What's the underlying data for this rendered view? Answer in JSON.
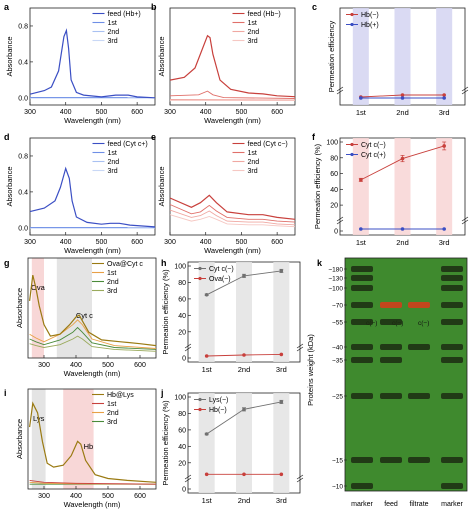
{
  "colors": {
    "blue": "#3b4fc4",
    "blue_light": "#6f8fe6",
    "blue_lighter": "#a9c1f2",
    "red": "#c8403c",
    "red_mid": "#e0706a",
    "red_light": "#f0a8a2",
    "red_bar": "#f8d7d7",
    "blue_bar": "#d6d6f2",
    "grey_bar": "#e4e4e4",
    "olive": "#9a7a12",
    "orange": "#e8a046",
    "green": "#4a8a3a",
    "grey_line": "#707070"
  },
  "chart_data": [
    {
      "id": "a",
      "panel_letter": "a",
      "type": "line",
      "xlabel": "Wavelength (nm)",
      "ylabel": "Absorbance",
      "xlim": [
        300,
        650
      ],
      "ylim": [
        -0.08,
        1.0
      ],
      "xticks": [
        "300",
        "400",
        "500",
        "600"
      ],
      "yticks": [
        "0.0",
        "0.4",
        "0.8"
      ],
      "series": [
        {
          "name": "feed (Hb+)",
          "x": [
            300,
            340,
            360,
            380,
            395,
            402,
            408,
            415,
            430,
            450,
            500,
            540,
            575,
            600,
            650
          ],
          "y": [
            0.04,
            0.08,
            0.12,
            0.3,
            0.68,
            0.75,
            0.55,
            0.2,
            0.06,
            0.03,
            0.01,
            0.03,
            0.03,
            0.01,
            0.0
          ]
        },
        {
          "name": "1st",
          "x": [
            300,
            650
          ],
          "y": [
            0.005,
            0.002
          ]
        },
        {
          "name": "2nd",
          "x": [
            300,
            650
          ],
          "y": [
            0.0,
            0.0
          ]
        },
        {
          "name": "3rd",
          "x": [
            300,
            650
          ],
          "y": [
            -0.003,
            -0.003
          ]
        }
      ]
    },
    {
      "id": "b",
      "panel_letter": "b",
      "type": "line",
      "xlabel": "Wavelength (nm)",
      "ylabel": "Absorbance",
      "xlim": [
        300,
        650
      ],
      "ylim": [
        -0.05,
        1.0
      ],
      "xticks": [
        "300",
        "400",
        "500",
        "600"
      ],
      "yticks": [],
      "series": [
        {
          "name": "feed (Hb−)",
          "x": [
            300,
            340,
            370,
            390,
            405,
            412,
            420,
            440,
            470,
            520,
            560,
            600,
            650
          ],
          "y": [
            0.22,
            0.25,
            0.35,
            0.55,
            0.7,
            0.68,
            0.5,
            0.22,
            0.12,
            0.08,
            0.07,
            0.05,
            0.04
          ]
        },
        {
          "name": "1st",
          "x": [
            300,
            380,
            405,
            420,
            450,
            650
          ],
          "y": [
            0.05,
            0.06,
            0.1,
            0.06,
            0.03,
            0.02
          ]
        },
        {
          "name": "2nd",
          "x": [
            300,
            650
          ],
          "y": [
            0.01,
            0.005
          ]
        },
        {
          "name": "3rd",
          "x": [
            300,
            650
          ],
          "y": [
            0.0,
            0.0
          ]
        }
      ]
    },
    {
      "id": "c",
      "panel_letter": "c",
      "type": "line",
      "xlabel": "",
      "ylabel": "Permeation efficiency",
      "categories": [
        "1st",
        "2nd",
        "3rd"
      ],
      "ylim": [
        0,
        100
      ],
      "break": true,
      "series": [
        {
          "name": "Hb(−)",
          "values": [
            2,
            3,
            3
          ]
        },
        {
          "name": "Hb(+)",
          "values": [
            1.5,
            1.5,
            1.5
          ]
        }
      ]
    },
    {
      "id": "d",
      "panel_letter": "d",
      "type": "line",
      "xlabel": "Wavelength (nm)",
      "ylabel": "Absorbance",
      "xlim": [
        300,
        650
      ],
      "ylim": [
        -0.08,
        1.0
      ],
      "xticks": [
        "300",
        "400",
        "500",
        "600"
      ],
      "yticks": [
        "0.0",
        "0.4",
        "0.8"
      ],
      "series": [
        {
          "name": "feed (Cyt c+)",
          "x": [
            300,
            340,
            370,
            385,
            400,
            410,
            418,
            430,
            460,
            500,
            525,
            550,
            580,
            650
          ],
          "y": [
            0.18,
            0.22,
            0.3,
            0.45,
            0.66,
            0.55,
            0.3,
            0.12,
            0.06,
            0.04,
            0.05,
            0.05,
            0.03,
            0.01
          ]
        },
        {
          "name": "1st",
          "x": [
            300,
            650
          ],
          "y": [
            0.005,
            0.002
          ]
        },
        {
          "name": "2nd",
          "x": [
            300,
            650
          ],
          "y": [
            0.0,
            0.0
          ]
        },
        {
          "name": "3rd",
          "x": [
            300,
            650
          ],
          "y": [
            -0.003,
            -0.003
          ]
        }
      ]
    },
    {
      "id": "e",
      "panel_letter": "e",
      "type": "line",
      "xlabel": "Wavelength (nm)",
      "ylabel": "Absorbance",
      "xlim": [
        300,
        650
      ],
      "ylim": [
        -0.05,
        1.0
      ],
      "xticks": [
        "300",
        "400",
        "500",
        "600"
      ],
      "yticks": [],
      "series": [
        {
          "name": "feed (Cyt c−)",
          "x": [
            300,
            360,
            385,
            410,
            430,
            460,
            520,
            560,
            600,
            650
          ],
          "y": [
            0.35,
            0.25,
            0.3,
            0.38,
            0.3,
            0.2,
            0.17,
            0.17,
            0.14,
            0.12
          ]
        },
        {
          "name": "1st",
          "x": [
            300,
            360,
            385,
            410,
            430,
            460,
            520,
            560,
            600,
            650
          ],
          "y": [
            0.28,
            0.18,
            0.2,
            0.27,
            0.21,
            0.14,
            0.12,
            0.12,
            0.1,
            0.09
          ]
        },
        {
          "name": "2nd",
          "x": [
            300,
            360,
            385,
            410,
            430,
            460,
            520,
            560,
            600,
            650
          ],
          "y": [
            0.22,
            0.14,
            0.16,
            0.21,
            0.16,
            0.1,
            0.09,
            0.09,
            0.07,
            0.06
          ]
        },
        {
          "name": "3rd",
          "x": [
            300,
            360,
            385,
            410,
            430,
            460,
            520,
            560,
            600,
            650
          ],
          "y": [
            0.17,
            0.1,
            0.12,
            0.15,
            0.12,
            0.07,
            0.06,
            0.06,
            0.05,
            0.04
          ]
        }
      ]
    },
    {
      "id": "f",
      "panel_letter": "f",
      "type": "line",
      "xlabel": "",
      "ylabel": "Permeation efficiency (%)",
      "categories": [
        "1st",
        "2nd",
        "3rd"
      ],
      "ylim": [
        0,
        100
      ],
      "yticks": [
        "0",
        "20",
        "40",
        "60",
        "80",
        "100"
      ],
      "break": true,
      "series": [
        {
          "name": "Cyt c(−)",
          "values": [
            52,
            79,
            95
          ],
          "errors": [
            2,
            4,
            5
          ]
        },
        {
          "name": "Cyt c(+)",
          "values": [
            1,
            1,
            1
          ],
          "errors": [
            0,
            0,
            0
          ]
        }
      ]
    },
    {
      "id": "g",
      "panel_letter": "g",
      "type": "line",
      "xlabel": "Wavelength (nm)",
      "ylabel": "Absorbance",
      "xlim": [
        250,
        650
      ],
      "ylim": [
        -0.05,
        1.0
      ],
      "xticks": [
        "300",
        "400",
        "500",
        "600"
      ],
      "yticks": [],
      "highlights": [
        {
          "range": [
            262,
            300
          ],
          "label": "Ova"
        },
        {
          "range": [
            340,
            450
          ],
          "label": "Cyt c"
        }
      ],
      "series": [
        {
          "name": "Ova@Cyt c",
          "x": [
            255,
            265,
            275,
            285,
            300,
            320,
            350,
            380,
            400,
            410,
            420,
            440,
            480,
            540,
            600,
            650
          ],
          "y": [
            0.55,
            0.82,
            0.68,
            0.5,
            0.3,
            0.18,
            0.2,
            0.3,
            0.38,
            0.4,
            0.34,
            0.22,
            0.14,
            0.12,
            0.1,
            0.08
          ]
        },
        {
          "name": "1st",
          "x": [
            255,
            275,
            300,
            350,
            390,
            405,
            420,
            450,
            520,
            650
          ],
          "y": [
            0.2,
            0.16,
            0.12,
            0.2,
            0.3,
            0.35,
            0.3,
            0.15,
            0.08,
            0.05
          ]
        },
        {
          "name": "2nd",
          "x": [
            255,
            275,
            300,
            350,
            390,
            405,
            420,
            450,
            520,
            650
          ],
          "y": [
            0.15,
            0.12,
            0.09,
            0.14,
            0.22,
            0.27,
            0.22,
            0.11,
            0.06,
            0.04
          ]
        },
        {
          "name": "3rd",
          "x": [
            255,
            275,
            300,
            350,
            390,
            405,
            420,
            450,
            520,
            650
          ],
          "y": [
            0.1,
            0.08,
            0.06,
            0.09,
            0.15,
            0.18,
            0.15,
            0.07,
            0.04,
            0.02
          ]
        }
      ]
    },
    {
      "id": "h",
      "panel_letter": "h",
      "type": "line",
      "xlabel": "",
      "ylabel": "Permeation efficiency (%)",
      "categories": [
        "1st",
        "2nd",
        "3rd"
      ],
      "ylim": [
        0,
        100
      ],
      "yticks": [
        "0",
        "20",
        "40",
        "60",
        "80",
        "100"
      ],
      "break": true,
      "series": [
        {
          "name": "Cyt c(−)",
          "values": [
            65,
            88,
            94
          ],
          "errors": [
            1,
            2,
            2
          ]
        },
        {
          "name": "Ova(−)",
          "values": [
            1,
            1.5,
            1.8
          ],
          "errors": [
            0,
            0,
            0
          ]
        }
      ]
    },
    {
      "id": "i",
      "panel_letter": "i",
      "type": "line",
      "xlabel": "Wavelength (nm)",
      "ylabel": "Absorbance",
      "xlim": [
        250,
        650
      ],
      "ylim": [
        -0.05,
        1.0
      ],
      "xticks": [
        "300",
        "400",
        "500",
        "600"
      ],
      "yticks": [],
      "highlights": [
        {
          "range": [
            262,
            305
          ],
          "label": "Lys"
        },
        {
          "range": [
            360,
            455
          ],
          "label": "Hb"
        }
      ],
      "series": [
        {
          "name": "Hb@Lys",
          "x": [
            255,
            265,
            280,
            295,
            310,
            330,
            360,
            385,
            405,
            415,
            430,
            460,
            500,
            560,
            650
          ],
          "y": [
            0.6,
            0.85,
            0.75,
            0.45,
            0.22,
            0.18,
            0.2,
            0.3,
            0.45,
            0.42,
            0.25,
            0.1,
            0.06,
            0.04,
            0.02
          ]
        },
        {
          "name": "1st",
          "x": [
            255,
            300,
            400,
            650
          ],
          "y": [
            0.04,
            0.02,
            0.01,
            0.0
          ]
        },
        {
          "name": "2nd",
          "x": [
            255,
            300,
            400,
            650
          ],
          "y": [
            0.02,
            0.01,
            0.005,
            0.0
          ]
        },
        {
          "name": "3rd",
          "x": [
            255,
            650
          ],
          "y": [
            0.0,
            0.0
          ]
        }
      ]
    },
    {
      "id": "j",
      "panel_letter": "j",
      "type": "line",
      "xlabel": "",
      "ylabel": "Permeation efficiency (%)",
      "categories": [
        "1st",
        "2nd",
        "3rd"
      ],
      "ylim": [
        0,
        100
      ],
      "yticks": [
        "0",
        "20",
        "40",
        "60",
        "80",
        "100"
      ],
      "break": true,
      "series": [
        {
          "name": "Lys(−)",
          "values": [
            55,
            85,
            94
          ],
          "errors": [
            1,
            2,
            2
          ]
        },
        {
          "name": "Hb(−)",
          "values": [
            6,
            6,
            6
          ],
          "errors": [
            0,
            0,
            0
          ]
        }
      ]
    }
  ],
  "gel": {
    "panel_letter": "k",
    "ylabel": "Proteins weight (kDa)",
    "markers": [
      "~180",
      "~130",
      "~100",
      "~70",
      "~55",
      "~40",
      "~35",
      "~25",
      "~15",
      "~10"
    ],
    "lanes": [
      "marker",
      "feed",
      "filtrate",
      "marker"
    ],
    "lane_texts": [
      "c(−)",
      "c(−)",
      "c(−)"
    ]
  }
}
